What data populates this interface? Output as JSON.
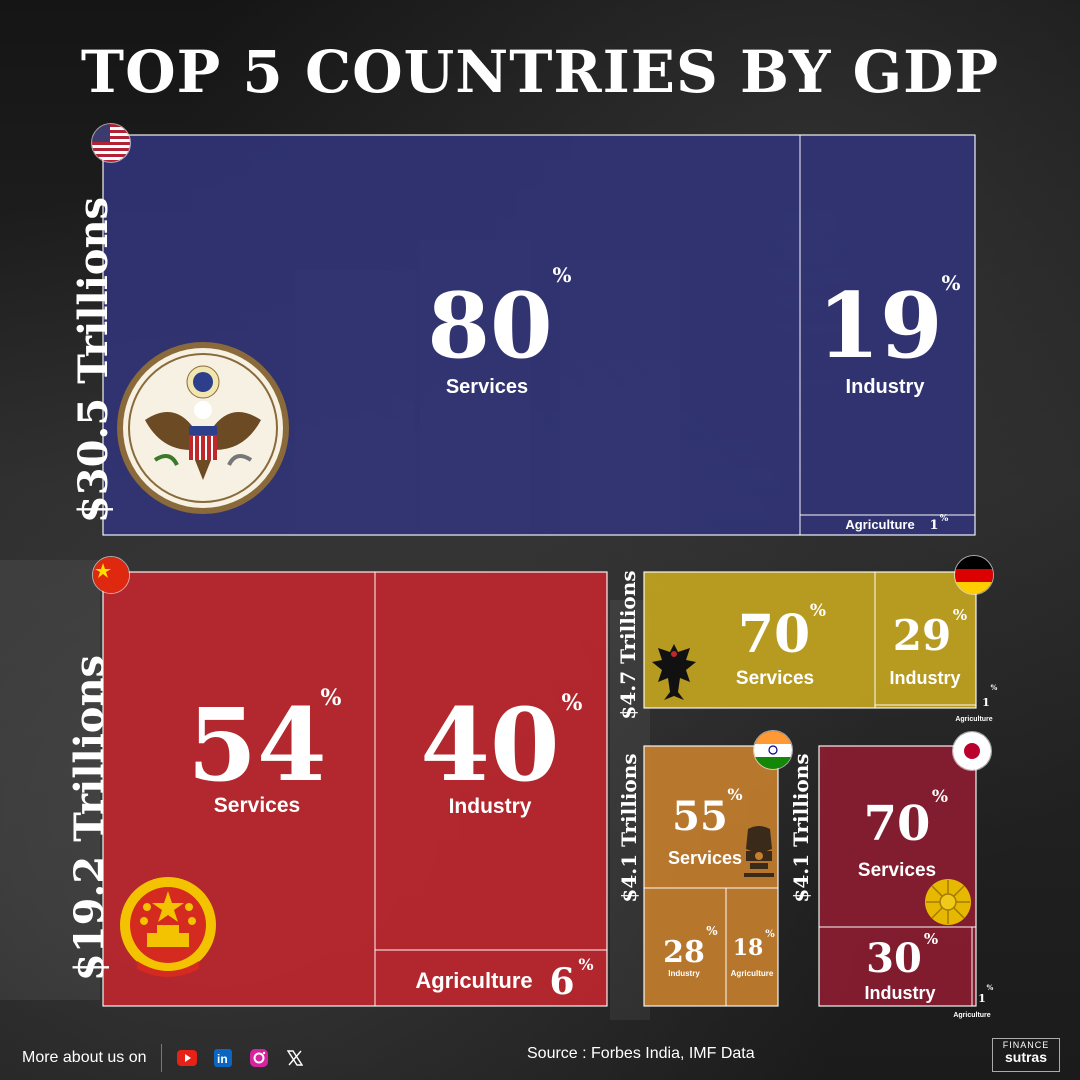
{
  "title": "TOP 5 COUNTRIES BY GDP",
  "colors": {
    "usa": "#313478",
    "china": "#c0272d",
    "germany": "#c7a720",
    "india": "#c67f2d",
    "japan": "#8c1d31"
  },
  "chart_data": {
    "type": "treemap",
    "title": "TOP 5 COUNTRIES BY GDP",
    "countries": [
      {
        "id": "usa",
        "gdp_label": "$30.5 Trillions",
        "gdp_trillions": 30.5,
        "flag_icon": "usa-flag-icon",
        "emblem_icon": "us-great-seal-icon",
        "sectors": [
          {
            "name": "Services",
            "value": 80
          },
          {
            "name": "Industry",
            "value": 19
          },
          {
            "name": "Agriculture",
            "value": 1
          }
        ]
      },
      {
        "id": "china",
        "gdp_label": "$19.2 Trillions",
        "gdp_trillions": 19.2,
        "flag_icon": "china-flag-icon",
        "emblem_icon": "china-national-emblem-icon",
        "sectors": [
          {
            "name": "Services",
            "value": 54
          },
          {
            "name": "Industry",
            "value": 40
          },
          {
            "name": "Agriculture",
            "value": 6
          }
        ]
      },
      {
        "id": "germany",
        "gdp_label": "$4.7 Trillions",
        "gdp_trillions": 4.7,
        "flag_icon": "germany-flag-icon",
        "emblem_icon": "german-eagle-icon",
        "sectors": [
          {
            "name": "Services",
            "value": 70
          },
          {
            "name": "Industry",
            "value": 29
          },
          {
            "name": "Agriculture",
            "value": 1
          }
        ]
      },
      {
        "id": "india",
        "gdp_label": "$4.1 Trillions",
        "gdp_trillions": 4.1,
        "flag_icon": "india-flag-icon",
        "emblem_icon": "india-lion-capital-icon",
        "sectors": [
          {
            "name": "Services",
            "value": 55
          },
          {
            "name": "Industry",
            "value": 28
          },
          {
            "name": "Agriculture",
            "value": 18
          }
        ]
      },
      {
        "id": "japan",
        "gdp_label": "$4.1 Trillions",
        "gdp_trillions": 4.1,
        "flag_icon": "japan-flag-icon",
        "emblem_icon": "japan-chrysanthemum-seal-icon",
        "sectors": [
          {
            "name": "Services",
            "value": 70
          },
          {
            "name": "Industry",
            "value": 30
          },
          {
            "name": "Agriculture",
            "value": 1
          }
        ]
      }
    ],
    "unit_symbol": "%"
  },
  "footer": {
    "more_about": "More about us on",
    "social_icons": [
      "youtube-icon",
      "linkedin-icon",
      "instagram-icon",
      "x-icon"
    ],
    "source": "Source : Forbes India, IMF Data",
    "logo_top": "FINANCE",
    "logo_bottom": "sutras"
  }
}
